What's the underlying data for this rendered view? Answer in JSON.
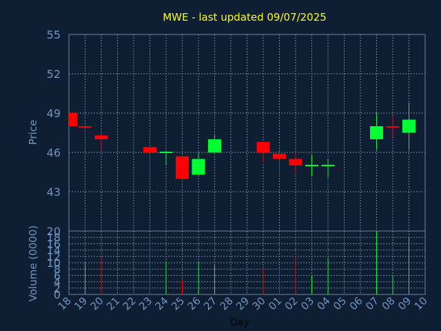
{
  "chart_data": [
    {
      "type": "candlestick",
      "title": "MWE - last updated 09/07/2025",
      "ylabel": "Price",
      "ylim": [
        40,
        55
      ],
      "yticks": [
        43,
        46,
        49,
        52,
        55
      ],
      "grid": true,
      "x": [
        "18",
        "19",
        "20",
        "21",
        "22",
        "23",
        "24",
        "25",
        "26",
        "27",
        "28",
        "29",
        "30",
        "01",
        "02",
        "03",
        "04",
        "05",
        "06",
        "07",
        "08",
        "09",
        "10"
      ],
      "candles": [
        {
          "x": "18",
          "open": 49.0,
          "high": 49.0,
          "low": 48.0,
          "close": 48.0
        },
        {
          "x": "19",
          "open": 48.0,
          "high": 48.2,
          "low": 47.6,
          "close": 47.9
        },
        {
          "x": "20",
          "open": 47.3,
          "high": 47.3,
          "low": 46.2,
          "close": 47.0
        },
        {
          "x": "23",
          "open": 46.4,
          "high": 46.4,
          "low": 44.1,
          "close": 46.0
        },
        {
          "x": "24",
          "open": 46.0,
          "high": 46.1,
          "low": 45.0,
          "close": 46.0
        },
        {
          "x": "25",
          "open": 45.7,
          "high": 45.7,
          "low": 44.0,
          "close": 44.0
        },
        {
          "x": "26",
          "open": 44.3,
          "high": 46.0,
          "low": 44.3,
          "close": 45.5
        },
        {
          "x": "27",
          "open": 46.0,
          "high": 47.3,
          "low": 46.0,
          "close": 47.0
        },
        {
          "x": "30",
          "open": 46.8,
          "high": 46.8,
          "low": 45.2,
          "close": 46.0
        },
        {
          "x": "01",
          "open": 45.9,
          "high": 45.9,
          "low": 44.2,
          "close": 45.5
        },
        {
          "x": "02",
          "open": 45.5,
          "high": 46.0,
          "low": 44.3,
          "close": 45.0
        },
        {
          "x": "03",
          "open": 45.0,
          "high": 45.8,
          "low": 44.2,
          "close": 45.0
        },
        {
          "x": "04",
          "open": 45.0,
          "high": 45.5,
          "low": 44.1,
          "close": 45.0
        },
        {
          "x": "07",
          "open": 47.0,
          "high": 49.0,
          "low": 46.2,
          "close": 48.0
        },
        {
          "x": "08",
          "open": 48.0,
          "high": 48.8,
          "low": 47.2,
          "close": 47.9
        },
        {
          "x": "09",
          "open": 47.5,
          "high": 49.8,
          "low": 46.2,
          "close": 48.5
        }
      ]
    },
    {
      "type": "bar",
      "ylabel": "Volume (0000)",
      "xlabel": "Day",
      "ylim": [
        0,
        20
      ],
      "yticks": [
        0,
        2,
        4,
        6,
        8,
        10,
        12,
        14,
        16,
        18,
        20
      ],
      "categories": [
        "18",
        "19",
        "20",
        "21",
        "22",
        "23",
        "24",
        "25",
        "26",
        "27",
        "28",
        "29",
        "30",
        "01",
        "02",
        "03",
        "04",
        "05",
        "06",
        "07",
        "08",
        "09",
        "10"
      ],
      "values": [
        0,
        10,
        11.5,
        0,
        0,
        18.5,
        10.5,
        4.5,
        10.5,
        9.5,
        0,
        0,
        8,
        8,
        12,
        6,
        11.5,
        0,
        0,
        20,
        6,
        18,
        0
      ],
      "directions": [
        "none",
        "up",
        "down",
        "none",
        "none",
        "down",
        "up",
        "down",
        "up",
        "up",
        "none",
        "none",
        "down",
        "down",
        "down",
        "up",
        "up",
        "none",
        "none",
        "up",
        "up",
        "up",
        "none"
      ]
    }
  ],
  "colors": {
    "background": "#0f1f33",
    "frame": "#6f86a0",
    "grid": "#6f86a0",
    "title": "#ffff00",
    "label": "#6f95c0",
    "up": "#00ff33",
    "down": "#ff0000"
  }
}
